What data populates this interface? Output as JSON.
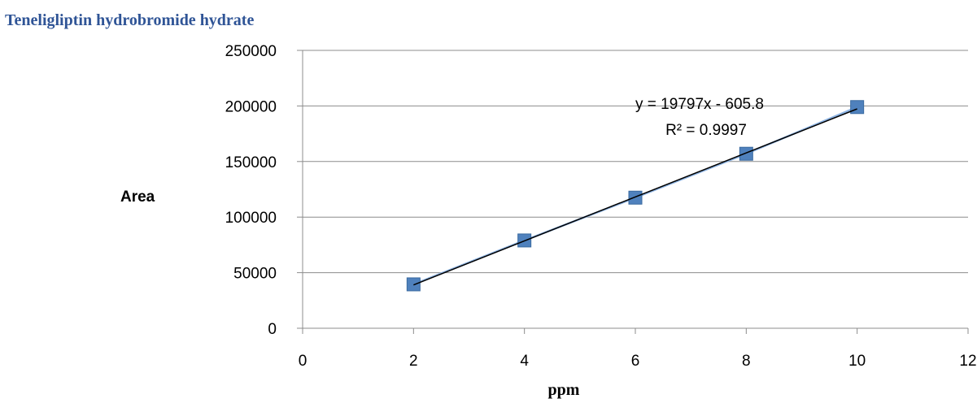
{
  "chart_data": {
    "type": "scatter",
    "title": "Teneligliptin hydrobromide hydrate",
    "xlabel": "ppm",
    "ylabel": "Area",
    "xlim": [
      0,
      12
    ],
    "ylim": [
      0,
      250000
    ],
    "x_ticks": [
      0,
      2,
      4,
      6,
      8,
      10,
      12
    ],
    "y_ticks": [
      0,
      50000,
      100000,
      150000,
      200000,
      250000
    ],
    "grid": "horizontal",
    "series": [
      {
        "x": [
          2,
          4,
          6,
          8,
          10
        ],
        "y": [
          39500,
          79000,
          117500,
          157000,
          199000
        ],
        "color": "#4f81bd",
        "marker": "square"
      }
    ],
    "trendline": {
      "slope": 19797,
      "intercept": -605.8,
      "color": "#000000",
      "equation": "y = 19797x - 605.8",
      "r_squared": "R² = 0.9997"
    }
  }
}
